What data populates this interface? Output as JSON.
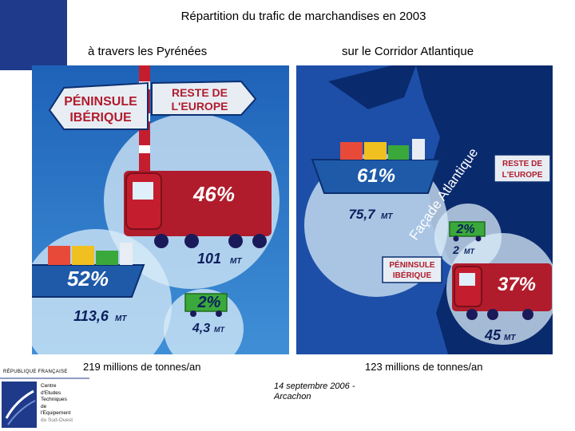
{
  "title": "Répartition du trafic de marchandises en 2003",
  "left": {
    "subtitle": "à travers les Pyrénées",
    "sign_left": [
      "PÉNINSULE",
      "IBÉRIQUE"
    ],
    "sign_right": [
      "RESTE DE",
      "L'EUROPE"
    ],
    "truck_pct": "46%",
    "truck_mt": "101",
    "ship_pct": "52%",
    "ship_mt": "113,6",
    "train_pct": "2%",
    "train_mt": "4,3",
    "unit": "MT",
    "total": "219 millions de tonnes/an"
  },
  "right": {
    "subtitle": "sur le Corridor Atlantique",
    "coast_label": "Façade Atlantique",
    "sign_top": [
      "RESTE DE",
      "L'EUROPE"
    ],
    "sign_bottom": [
      "PÉNINSULE",
      "IBÉRIQUE"
    ],
    "ship_pct": "61%",
    "ship_mt": "75,7",
    "train_pct": "2%",
    "train_mt": "2",
    "truck_pct": "37%",
    "truck_mt": "45",
    "unit": "MT",
    "total": "123 millions de tonnes/an"
  },
  "footer": {
    "republic": "RÉPUBLIQUE FRANÇAISE",
    "org_lines": [
      "Centre",
      "d'Etudes",
      "Techniques",
      "de",
      "l'Equipement"
    ],
    "org_region": "du Sud-Ouest",
    "date_line1": "14 septembre 2006 -",
    "date_line2": "Arcachon"
  },
  "colors": {
    "sky": "#4a9ad6",
    "sea": "#1d4fa8",
    "land": "#0a2a6e",
    "truck": "#b01c2c",
    "ship": "#1e5aa8",
    "train": "#3aa83a",
    "sign": "#e8edf4",
    "sign_text": "#b01c2c"
  }
}
